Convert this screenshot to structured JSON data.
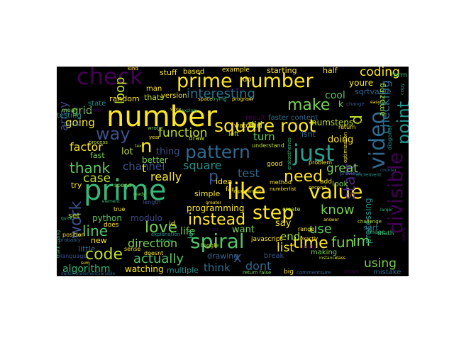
{
  "words": [
    {
      "t": "number",
      "c": "#fde725"
    },
    {
      "t": "prime",
      "c": "#35b779"
    },
    {
      "t": "prime number",
      "c": "#fde725"
    },
    {
      "t": "check",
      "c": "#440154"
    },
    {
      "t": "square root",
      "c": "#fde725"
    },
    {
      "t": "just",
      "c": "#2a9d8f"
    },
    {
      "t": "like",
      "c": "#fde725"
    },
    {
      "t": "spiral",
      "c": "#52c569"
    },
    {
      "t": "value",
      "c": "#fde725"
    },
    {
      "t": "pattern",
      "c": "#31688e"
    },
    {
      "t": "video",
      "c": "#31688e"
    },
    {
      "t": "divisible",
      "c": "#440154"
    },
    {
      "t": "step",
      "c": "#fde725"
    },
    {
      "t": "love",
      "c": "#7ad151"
    },
    {
      "t": "code",
      "c": "#bddf26"
    },
    {
      "t": "make",
      "c": "#7ad151"
    },
    {
      "t": "way",
      "c": "#3b528b"
    },
    {
      "t": "loop",
      "c": "#bddf26"
    },
    {
      "t": "d",
      "c": "#bddf26"
    },
    {
      "t": "n",
      "c": "#fde725"
    },
    {
      "t": "point",
      "c": "#21918c"
    },
    {
      "t": "need",
      "c": "#fde725"
    },
    {
      "t": "thank",
      "c": "#5ec962"
    },
    {
      "t": "interesting",
      "c": "#2c728e"
    },
    {
      "t": "instead",
      "c": "#fde725"
    },
    {
      "t": "coding",
      "c": "#fde725"
    },
    {
      "t": "time",
      "c": "#fde725"
    },
    {
      "t": "function",
      "c": "#bddf26"
    },
    {
      "t": "start",
      "c": "#482878"
    },
    {
      "t": "know",
      "c": "#7ad151"
    },
    {
      "t": "fun",
      "c": "#7ad151"
    },
    {
      "t": "use",
      "c": "#5ec962"
    },
    {
      "t": "im",
      "c": "#7ad151"
    },
    {
      "t": "work",
      "c": "#3b528b"
    },
    {
      "t": "line",
      "c": "#52c569"
    },
    {
      "t": "actually",
      "c": "#52c569"
    },
    {
      "t": "list",
      "c": "#fde725"
    },
    {
      "t": "direction",
      "c": "#7ad151"
    },
    {
      "t": "checking",
      "c": "#2c728e"
    },
    {
      "t": "factor",
      "c": "#fde725"
    },
    {
      "t": "array",
      "c": "#3e4989"
    },
    {
      "t": "grid",
      "c": "#7ad151"
    },
    {
      "t": "going",
      "c": "#fde725"
    },
    {
      "t": "channel",
      "c": "#3b528b"
    },
    {
      "t": "case",
      "c": "#bddf26"
    },
    {
      "t": "square",
      "c": "#21918c"
    },
    {
      "t": "really",
      "c": "#fde725"
    },
    {
      "t": "test",
      "c": "#31688e"
    },
    {
      "t": "great",
      "c": "#7ad151"
    },
    {
      "t": "dont",
      "c": "#31688e"
    },
    {
      "t": "think",
      "c": "#2c728e"
    },
    {
      "t": "x",
      "c": "#3b528b"
    },
    {
      "t": "using",
      "c": "#7ad151"
    },
    {
      "t": "processing",
      "c": "#21918c"
    },
    {
      "t": "p",
      "c": "#3b528b"
    },
    {
      "t": "algorithm",
      "c": "#35b779"
    },
    {
      "t": "watching",
      "c": "#fde725"
    },
    {
      "t": "end",
      "c": "#9fda3a"
    },
    {
      "t": "say",
      "c": "#fde725"
    },
    {
      "t": "life",
      "c": "#7ad151"
    },
    {
      "t": "turn",
      "c": "#5ec962"
    },
    {
      "t": "did",
      "c": "#bddf26"
    },
    {
      "t": "lot",
      "c": "#bddf26"
    },
    {
      "t": "python",
      "c": "#5ec962"
    },
    {
      "t": "modulo",
      "c": "#3e4989"
    },
    {
      "t": "want",
      "c": "#7ad151"
    },
    {
      "t": "cool",
      "c": "#52c569"
    },
    {
      "t": "doing",
      "c": "#fde725"
    },
    {
      "t": "isnt",
      "c": "#2c728e"
    },
    {
      "t": "numsteps",
      "c": "#bddf26"
    },
    {
      "t": "sqrtvalue",
      "c": "#31688e"
    },
    {
      "t": "youre",
      "c": "#fde725"
    },
    {
      "t": "thats",
      "c": "#bddf26"
    },
    {
      "t": "thing",
      "c": "#3b528b"
    },
    {
      "t": "fast",
      "c": "#7ad151"
    },
    {
      "t": "amazing",
      "c": "#9fda3a"
    },
    {
      "t": "programming",
      "c": "#fde725"
    },
    {
      "t": "multiple",
      "c": "#21918c"
    },
    {
      "t": "simple",
      "c": "#fde725"
    },
    {
      "t": "better",
      "c": "#7ad151"
    },
    {
      "t": "stuff",
      "c": "#fde725"
    },
    {
      "t": "random",
      "c": "#fde725"
    },
    {
      "t": "state",
      "c": "#21918c"
    },
    {
      "t": "version",
      "c": "#fde725"
    },
    {
      "t": "set",
      "c": "#bddf26"
    },
    {
      "t": "new",
      "c": "#fde725"
    },
    {
      "t": "little",
      "c": "#31688e"
    },
    {
      "t": "sqrt",
      "c": "#2c728e"
    },
    {
      "t": "math",
      "c": "#35b779"
    },
    {
      "t": "mistake",
      "c": "#31688e"
    },
    {
      "t": "drawing",
      "c": "#31688e"
    },
    {
      "t": "break",
      "c": "#3b528b"
    },
    {
      "t": "making",
      "c": "#7ad151"
    },
    {
      "t": "look",
      "c": "#7ad151"
    },
    {
      "t": "idea",
      "c": "#fde725"
    },
    {
      "t": "faster",
      "c": "#2c728e"
    },
    {
      "t": "result",
      "c": "#440154"
    },
    {
      "t": "content",
      "c": "#31688e"
    },
    {
      "t": "example",
      "c": "#fde725"
    },
    {
      "t": "starting",
      "c": "#fde725"
    },
    {
      "t": "half",
      "c": "#fde725"
    },
    {
      "t": "form",
      "c": "#35b779"
    },
    {
      "t": "based",
      "c": "#fde725"
    },
    {
      "t": "man",
      "c": "#fde725"
    },
    {
      "t": "dot",
      "c": "#fde725"
    },
    {
      "t": "mean",
      "c": "#7ad151"
    },
    {
      "t": "isprime",
      "c": "#440154"
    },
    {
      "t": "circle",
      "c": "#31688e"
    },
    {
      "t": "testing",
      "c": "#21918c"
    },
    {
      "t": "draw",
      "c": "#bddf26"
    },
    {
      "t": "left",
      "c": "#bddf26"
    },
    {
      "t": "watch",
      "c": "#fde725"
    },
    {
      "t": "understand",
      "c": "#bddf26"
    },
    {
      "t": "problem",
      "c": "#fde725"
    },
    {
      "t": "good",
      "c": "#fde725"
    },
    {
      "t": "create",
      "c": "#bddf26"
    },
    {
      "t": "method",
      "c": "#fde725"
    },
    {
      "t": "true",
      "c": "#fde725"
    },
    {
      "t": "does",
      "c": "#fde725"
    },
    {
      "t": "position",
      "c": "#fde725"
    },
    {
      "t": "length",
      "c": "#3b528b"
    },
    {
      "t": "toggle",
      "c": "#bddf26"
    },
    {
      "t": "javascript",
      "c": "#fde725"
    },
    {
      "t": "doesnt",
      "c": "#fde725"
    },
    {
      "t": "explanation",
      "c": "#21918c"
    },
    {
      "t": "language",
      "c": "#3b528b"
    },
    {
      "t": "probably",
      "c": "#31688e"
    },
    {
      "t": "sense",
      "c": "#fde725"
    },
    {
      "t": "image",
      "c": "#35b779"
    },
    {
      "t": "range",
      "c": "#fde725"
    },
    {
      "t": "shape",
      "c": "#440154"
    },
    {
      "t": "big",
      "c": "#fde725"
    },
    {
      "t": "return false",
      "c": "#7ad151"
    },
    {
      "t": "commentsure",
      "c": "#31688e"
    },
    {
      "t": "exactly",
      "c": "#fde725"
    },
    {
      "t": "pretty",
      "c": "#440154"
    },
    {
      "t": "second",
      "c": "#fde725"
    },
    {
      "t": "speed",
      "c": "#7ad151"
    },
    {
      "t": "year",
      "c": "#fde725"
    },
    {
      "t": "wrote",
      "c": "#7ad151"
    },
    {
      "t": "sieve",
      "c": "#440154"
    },
    {
      "t": "diagonal",
      "c": "#21918c"
    },
    {
      "t": "switch statementvariable",
      "c": "#31688e"
    },
    {
      "t": "youtube",
      "c": "#35b779"
    },
    {
      "t": "element",
      "c": "#35b779"
    },
    {
      "t": "trying",
      "c": "#35b779"
    },
    {
      "t": "change",
      "c": "#3b528b"
    },
    {
      "t": "program",
      "c": "#fde725"
    },
    {
      "t": "previous",
      "c": "#31688e"
    },
    {
      "t": "space",
      "c": "#fde725"
    },
    {
      "t": "return",
      "c": "#fde725"
    },
    {
      "t": "kind",
      "c": "#fde725"
    },
    {
      "t": "copy",
      "c": "#21918c"
    },
    {
      "t": "try",
      "c": "#fde725"
    },
    {
      "t": "t",
      "c": "#fde725"
    },
    {
      "t": "far",
      "c": "#fde725"
    },
    {
      "t": "let",
      "c": "#35b779"
    },
    {
      "t": "k",
      "c": "#7ad151"
    },
    {
      "t": "id",
      "c": "#fde725"
    },
    {
      "t": "add",
      "c": "#fde725"
    },
    {
      "t": "process",
      "c": "#bddf26"
    },
    {
      "t": "numberlist",
      "c": "#fde725"
    },
    {
      "t": "improvement",
      "c": "#fde725"
    },
    {
      "t": "increment",
      "c": "#21918c"
    },
    {
      "t": "eratosthenes",
      "c": "#35b779"
    },
    {
      "t": "challenge",
      "c": "#bddf26"
    },
    {
      "t": "optimization",
      "c": "#fde725"
    },
    {
      "t": "answer",
      "c": "#fde725"
    },
    {
      "t": "instance",
      "c": "#bddf26"
    },
    {
      "t": "quick",
      "c": "#35b779"
    },
    {
      "t": "thank coding",
      "c": "#35b779"
    },
    {
      "t": "text",
      "c": "#bddf26"
    },
    {
      "t": "nice",
      "c": "#440154"
    },
    {
      "t": "store",
      "c": "#fde725"
    },
    {
      "t": "ready",
      "c": "#7ad151"
    },
    {
      "t": "larger",
      "c": "#35b779"
    },
    {
      "t": "greater",
      "c": "#fde725"
    },
    {
      "t": "explain",
      "c": "#35b779"
    },
    {
      "t": "class",
      "c": "#fde725"
    },
    {
      "t": "sum",
      "c": "#fde725"
    },
    {
      "t": "current",
      "c": "#440154"
    },
    {
      "t": "counter",
      "c": "#31688e"
    },
    {
      "t": "easy",
      "c": "#fde725"
    },
    {
      "t": "bit",
      "c": "#440154"
    },
    {
      "t": "enough",
      "c": "#fde725"
    }
  ]
}
